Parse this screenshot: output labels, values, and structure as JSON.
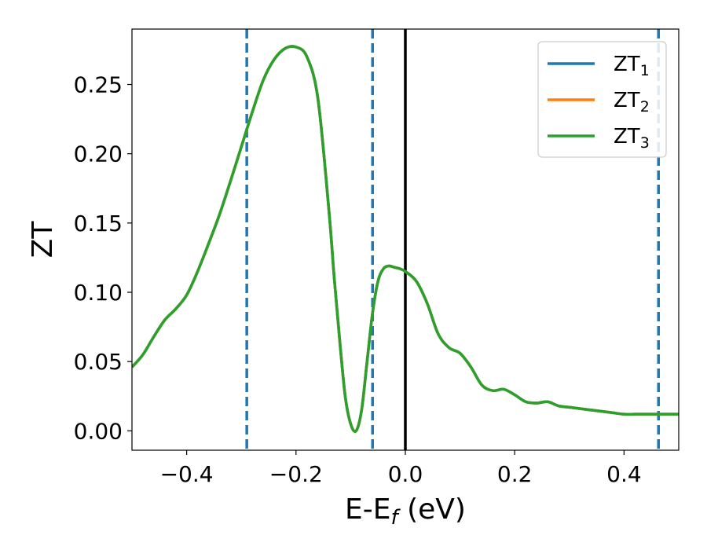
{
  "chart_data": {
    "type": "line",
    "xlabel_parts": [
      "E-E",
      "f",
      " (eV)"
    ],
    "ylabel": "ZT",
    "xlim": [
      -0.5,
      0.5
    ],
    "ylim": [
      -0.014,
      0.29
    ],
    "x_ticks": [
      -0.4,
      -0.2,
      0.0,
      0.2,
      0.4
    ],
    "x_tick_labels": [
      "−0.4",
      "−0.2",
      "0.0",
      "0.2",
      "0.4"
    ],
    "y_ticks": [
      0.0,
      0.05,
      0.1,
      0.15,
      0.2,
      0.25
    ],
    "y_tick_labels": [
      "0.00",
      "0.05",
      "0.10",
      "0.15",
      "0.20",
      "0.25"
    ],
    "grid": false,
    "legend": {
      "position": "top-right",
      "entries": [
        {
          "base": "ZT",
          "sub": "1",
          "color": "#1f77b4"
        },
        {
          "base": "ZT",
          "sub": "2",
          "color": "#ff7f0e"
        },
        {
          "base": "ZT",
          "sub": "3",
          "color": "#2ca02c"
        }
      ]
    },
    "vertical_lines": [
      {
        "x": -0.29,
        "style": "dashed",
        "color": "#1f77b4"
      },
      {
        "x": -0.06,
        "style": "dashed",
        "color": "#1f77b4"
      },
      {
        "x": 0.0,
        "style": "solid",
        "color": "#000000"
      },
      {
        "x": 0.463,
        "style": "dashed",
        "color": "#1f77b4"
      }
    ],
    "x": [
      -0.5,
      -0.48,
      -0.46,
      -0.44,
      -0.42,
      -0.4,
      -0.38,
      -0.36,
      -0.34,
      -0.32,
      -0.3,
      -0.28,
      -0.26,
      -0.24,
      -0.22,
      -0.2,
      -0.18,
      -0.16,
      -0.14,
      -0.13,
      -0.12,
      -0.11,
      -0.1,
      -0.09,
      -0.08,
      -0.07,
      -0.06,
      -0.05,
      -0.04,
      -0.03,
      -0.02,
      -0.01,
      0.0,
      0.02,
      0.04,
      0.06,
      0.08,
      0.1,
      0.12,
      0.14,
      0.16,
      0.18,
      0.2,
      0.22,
      0.24,
      0.26,
      0.28,
      0.3,
      0.32,
      0.34,
      0.36,
      0.38,
      0.4,
      0.42,
      0.44,
      0.46,
      0.48,
      0.5
    ],
    "series": [
      {
        "color": "#1f77b4",
        "values": [
          0.046,
          0.055,
          0.068,
          0.08,
          0.088,
          0.098,
          0.115,
          0.135,
          0.156,
          0.18,
          0.205,
          0.23,
          0.253,
          0.268,
          0.276,
          0.277,
          0.27,
          0.24,
          0.16,
          0.11,
          0.065,
          0.025,
          0.005,
          0.0,
          0.015,
          0.05,
          0.085,
          0.108,
          0.117,
          0.119,
          0.118,
          0.117,
          0.115,
          0.108,
          0.092,
          0.07,
          0.06,
          0.056,
          0.046,
          0.033,
          0.029,
          0.03,
          0.026,
          0.021,
          0.02,
          0.021,
          0.018,
          0.017,
          0.016,
          0.015,
          0.014,
          0.013,
          0.012,
          0.012,
          0.012,
          0.012,
          0.012,
          0.012
        ]
      },
      {
        "color": "#ff7f0e",
        "values": [
          0.046,
          0.055,
          0.068,
          0.08,
          0.088,
          0.098,
          0.115,
          0.135,
          0.156,
          0.18,
          0.205,
          0.23,
          0.253,
          0.268,
          0.276,
          0.277,
          0.27,
          0.24,
          0.16,
          0.11,
          0.065,
          0.025,
          0.005,
          0.0,
          0.015,
          0.05,
          0.085,
          0.108,
          0.117,
          0.119,
          0.118,
          0.117,
          0.115,
          0.108,
          0.092,
          0.07,
          0.06,
          0.056,
          0.046,
          0.033,
          0.029,
          0.03,
          0.026,
          0.021,
          0.02,
          0.021,
          0.018,
          0.017,
          0.016,
          0.015,
          0.014,
          0.013,
          0.012,
          0.012,
          0.012,
          0.012,
          0.012,
          0.012
        ]
      },
      {
        "color": "#2ca02c",
        "values": [
          0.046,
          0.055,
          0.068,
          0.08,
          0.088,
          0.098,
          0.115,
          0.135,
          0.156,
          0.18,
          0.205,
          0.23,
          0.253,
          0.268,
          0.276,
          0.277,
          0.27,
          0.24,
          0.16,
          0.11,
          0.065,
          0.025,
          0.005,
          0.0,
          0.015,
          0.05,
          0.085,
          0.108,
          0.117,
          0.119,
          0.118,
          0.117,
          0.115,
          0.108,
          0.092,
          0.07,
          0.06,
          0.056,
          0.046,
          0.033,
          0.029,
          0.03,
          0.026,
          0.021,
          0.02,
          0.021,
          0.018,
          0.017,
          0.016,
          0.015,
          0.014,
          0.013,
          0.012,
          0.012,
          0.012,
          0.012,
          0.012,
          0.012
        ]
      }
    ]
  }
}
